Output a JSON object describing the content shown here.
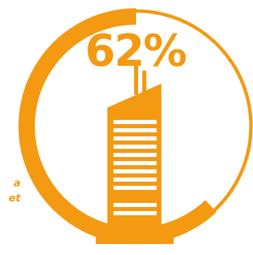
{
  "gauge": {
    "percent_label": "62%",
    "value_fraction": 0.62,
    "accent_color": "#f39a12",
    "track_color": "#f39a12",
    "icon": "skyscraper-icon"
  },
  "side_text": {
    "line1": "a",
    "line2": "et"
  }
}
